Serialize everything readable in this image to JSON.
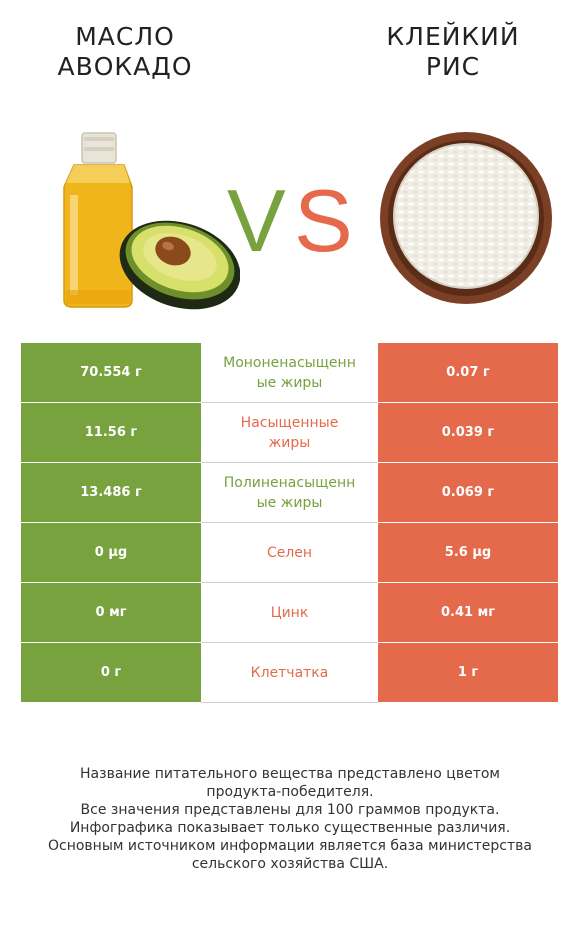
{
  "colors": {
    "left_accent": "#77a23d",
    "right_accent": "#e56a4b"
  },
  "header": {
    "left_title": "МАСЛО\nАВОКАДО",
    "right_title": "КЛЕЙКИЙ\nРИС",
    "vs_v": "V",
    "vs_s": "S"
  },
  "images": {
    "left_icon": "avocado-oil-bottle-icon",
    "right_icon": "sticky-rice-bowl-icon"
  },
  "rows": [
    {
      "left": "70.554 г",
      "nutrient": "Мононенасыщенн\nые жиры",
      "right": "0.07 г",
      "winner": "left"
    },
    {
      "left": "11.56 г",
      "nutrient": "Насыщенные\nжиры",
      "right": "0.039 г",
      "winner": "right"
    },
    {
      "left": "13.486 г",
      "nutrient": "Полиненасыщенн\nые жиры",
      "right": "0.069 г",
      "winner": "left"
    },
    {
      "left": "0 µg",
      "nutrient": "Селен",
      "right": "5.6 µg",
      "winner": "right"
    },
    {
      "left": "0 мг",
      "nutrient": "Цинк",
      "right": "0.41 мг",
      "winner": "right"
    },
    {
      "left": "0 г",
      "nutrient": "Клетчатка",
      "right": "1 г",
      "winner": "right"
    }
  ],
  "footer": {
    "line1": "Название питательного вещества представлено цветом\nпродукта-победителя.",
    "line2": "Все значения представлены для 100 граммов продукта.",
    "line3": "Инфографика показывает только существенные различия.",
    "line4": "Основным источником информации является база министерства\nсельского хозяйства США."
  }
}
